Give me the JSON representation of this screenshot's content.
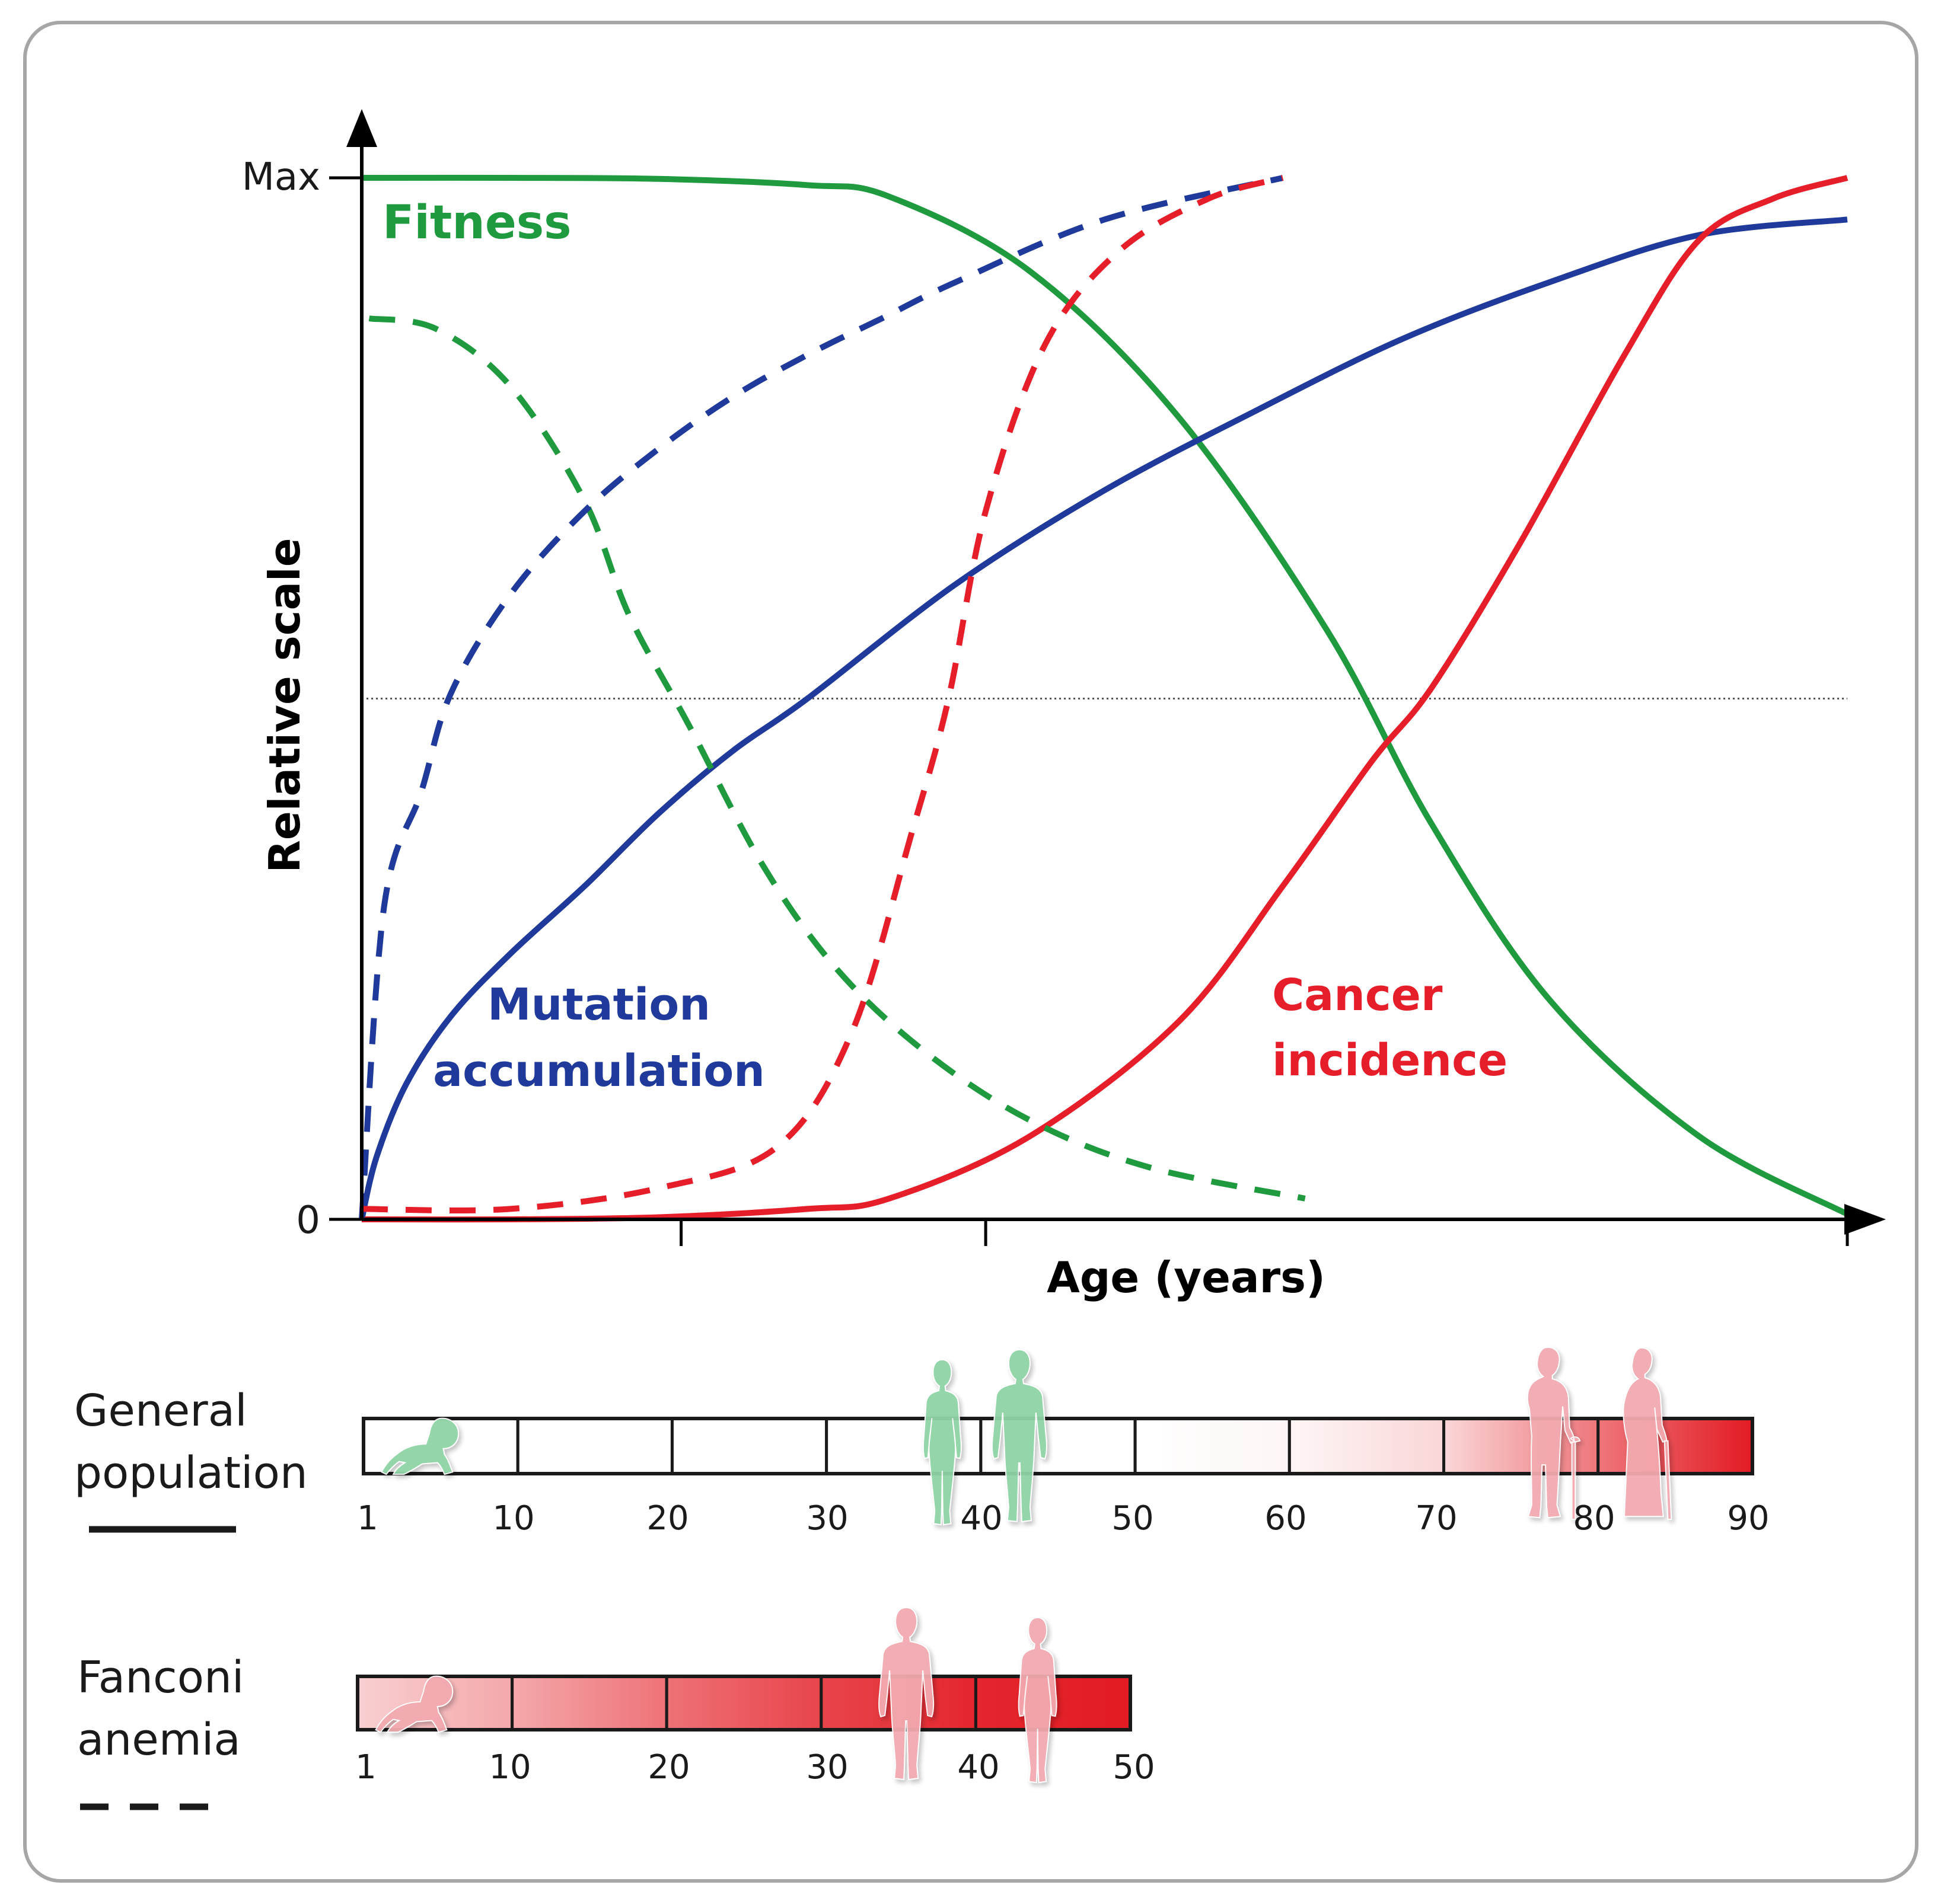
{
  "colors": {
    "fitness": "#1f9a3e",
    "mutation": "#1f3a9a",
    "cancer": "#e61e2a",
    "bar_red": "#e31b23",
    "figure_green": "#8fd4a6",
    "figure_pink": "#f2aab0"
  },
  "chart_data": {
    "type": "line",
    "title": "",
    "xlabel": "Age (years)",
    "ylabel": "Relative scale",
    "y_tick_labels": [
      "Max",
      "0"
    ],
    "xlim": [
      0,
      100
    ],
    "ylim": [
      0,
      100
    ],
    "x_ticks": [
      0,
      21.5,
      42,
      100
    ],
    "midline_y": 50,
    "curve_labels": {
      "fitness": "Fitness",
      "mutation_line1": "Mutation",
      "mutation_line2": "accumulation",
      "cancer_line1": "Cancer",
      "cancer_line2": "incidence"
    },
    "series": [
      {
        "name": "Fitness",
        "group": "General population",
        "style": "solid",
        "color_key": "fitness",
        "x": [
          0,
          10,
          20,
          30,
          35.5,
          45,
          55,
          65,
          72,
          80,
          90,
          100
        ],
        "y": [
          100,
          100,
          99.9,
          99.3,
          98.2,
          91,
          77,
          56.5,
          38,
          21,
          8,
          0.5
        ]
      },
      {
        "name": "Mutation accumulation",
        "group": "General population",
        "style": "solid",
        "color_key": "mutation",
        "x": [
          0,
          1,
          3,
          6,
          10,
          15,
          20,
          25,
          30,
          40,
          50,
          60,
          70,
          80,
          90,
          100
        ],
        "y": [
          0,
          6,
          13,
          19.5,
          25.5,
          32,
          39,
          45,
          50,
          61,
          70,
          77.5,
          84.5,
          90,
          94.5,
          96
        ]
      },
      {
        "name": "Cancer incidence",
        "group": "General population",
        "style": "solid",
        "color_key": "cancer",
        "x": [
          0,
          10,
          20,
          30,
          35.5,
          45,
          55,
          62,
          68,
          72,
          78,
          85,
          90,
          95,
          100
        ],
        "y": [
          0,
          0,
          0.2,
          1,
          2,
          8,
          19,
          32,
          44,
          51,
          65,
          83,
          94,
          98,
          100
        ]
      },
      {
        "name": "Fitness",
        "group": "Fanconi anemia",
        "style": "dashed",
        "color_key": "fitness",
        "x": [
          0.5,
          5,
          10,
          15,
          18,
          22,
          27,
          32,
          38,
          45,
          53,
          63.5
        ],
        "y": [
          86.5,
          85.5,
          80,
          69,
          58,
          47.5,
          34,
          24,
          16,
          9.5,
          5,
          2
        ]
      },
      {
        "name": "Mutation accumulation",
        "group": "Fanconi anemia",
        "style": "dashed",
        "color_key": "mutation",
        "x": [
          0,
          1.5,
          4,
          6,
          10,
          15,
          20,
          25,
          30,
          35,
          40,
          50,
          62
        ],
        "y": [
          0,
          30,
          41,
          50.5,
          60,
          68,
          74,
          79,
          83,
          86.5,
          90,
          96,
          100
        ]
      },
      {
        "name": "Cancer incidence",
        "group": "Fanconi anemia",
        "style": "dashed",
        "color_key": "cancer",
        "x": [
          0,
          10,
          20,
          28,
          33,
          37,
          39.5,
          42,
          46,
          51,
          57,
          62
        ],
        "y": [
          1,
          1,
          3,
          7,
          18,
          37,
          50,
          68,
          84,
          93,
          98,
          100
        ]
      }
    ],
    "timelines": [
      {
        "name": "General population",
        "label_line1": "General",
        "label_line2": "population",
        "legend_style": "solid",
        "ticks": [
          "1",
          "10",
          "20",
          "30",
          "40",
          "50",
          "60",
          "70",
          "80",
          "90"
        ],
        "segment_risk": [
          0,
          0,
          0,
          0,
          0,
          0.04,
          0.18,
          0.6,
          1.0
        ],
        "figures": [
          {
            "kind": "baby",
            "color_key": "figure_green",
            "age": 4
          },
          {
            "kind": "adult-female",
            "color_key": "figure_green",
            "age": 37.5
          },
          {
            "kind": "adult-male",
            "color_key": "figure_green",
            "age": 42.5
          },
          {
            "kind": "elderly-male",
            "color_key": "figure_pink",
            "age": 77
          },
          {
            "kind": "elderly-female",
            "color_key": "figure_pink",
            "age": 83
          }
        ]
      },
      {
        "name": "Fanconi anemia",
        "label_line1": "Fanconi",
        "label_line2": "anemia",
        "legend_style": "dashed",
        "ticks": [
          "1",
          "10",
          "20",
          "30",
          "40",
          "50"
        ],
        "segment_risk": [
          0.38,
          0.62,
          0.82,
          0.95,
          1.0
        ],
        "figures": [
          {
            "kind": "baby",
            "color_key": "figure_pink",
            "age": 4
          },
          {
            "kind": "adult-male",
            "color_key": "figure_pink",
            "age": 35.5
          },
          {
            "kind": "adult-female",
            "color_key": "figure_pink",
            "age": 44
          }
        ]
      }
    ]
  }
}
